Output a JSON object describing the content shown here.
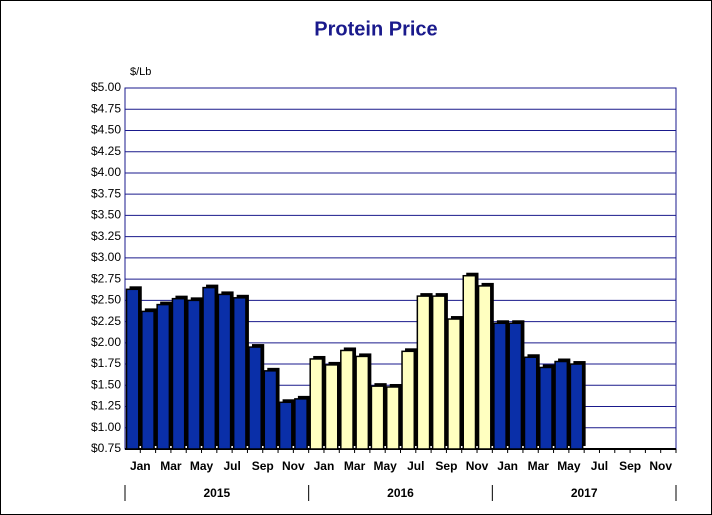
{
  "chart_data": {
    "type": "bar",
    "title": "Protein Price",
    "y_label": "$/Lb",
    "categories": [
      "Jan",
      null,
      "Mar",
      null,
      "May",
      null,
      "Jul",
      null,
      "Sep",
      null,
      "Nov",
      null,
      "Jan",
      null,
      "Mar",
      null,
      "May",
      null,
      "Jul",
      null,
      "Sep",
      null,
      "Nov",
      null,
      "Jan",
      null,
      "Mar",
      null,
      "May",
      null,
      "Jul",
      null,
      "Sep",
      null,
      "Nov",
      null
    ],
    "values": [
      2.63,
      2.37,
      2.45,
      2.52,
      2.5,
      2.65,
      2.57,
      2.53,
      1.95,
      1.67,
      1.3,
      1.34,
      1.81,
      1.74,
      1.91,
      1.84,
      1.49,
      1.48,
      1.9,
      2.55,
      2.55,
      2.28,
      2.79,
      2.67,
      2.23,
      2.23,
      1.83,
      1.71,
      1.78,
      1.75,
      null,
      null,
      null,
      null,
      null,
      null
    ],
    "groups": [
      {
        "label": "2015",
        "color": "#0a2fa8"
      },
      {
        "label": "2016",
        "color": "#ffffc0"
      },
      {
        "label": "2017",
        "color": "#0a2fa8"
      }
    ],
    "ylim": [
      0.75,
      5.0
    ],
    "yticks": [
      {
        "value": 0.75,
        "label": "$0.75"
      },
      {
        "value": 1.0,
        "label": "$1.00"
      },
      {
        "value": 1.25,
        "label": "$1.25"
      },
      {
        "value": 1.5,
        "label": "$1.50"
      },
      {
        "value": 1.75,
        "label": "$1.75"
      },
      {
        "value": 2.0,
        "label": "$2.00"
      },
      {
        "value": 2.25,
        "label": "$2.25"
      },
      {
        "value": 2.5,
        "label": "$2.50"
      },
      {
        "value": 2.75,
        "label": "$2.75"
      },
      {
        "value": 3.0,
        "label": "$3.00"
      },
      {
        "value": 3.25,
        "label": "$3.25"
      },
      {
        "value": 3.5,
        "label": "$3.50"
      },
      {
        "value": 3.75,
        "label": "$3.75"
      },
      {
        "value": 4.0,
        "label": "$4.00"
      },
      {
        "value": 4.25,
        "label": "$4.25"
      },
      {
        "value": 4.5,
        "label": "$4.50"
      },
      {
        "value": 4.75,
        "label": "$4.75"
      },
      {
        "value": 5.0,
        "label": "$5.00"
      }
    ],
    "grid": true
  }
}
